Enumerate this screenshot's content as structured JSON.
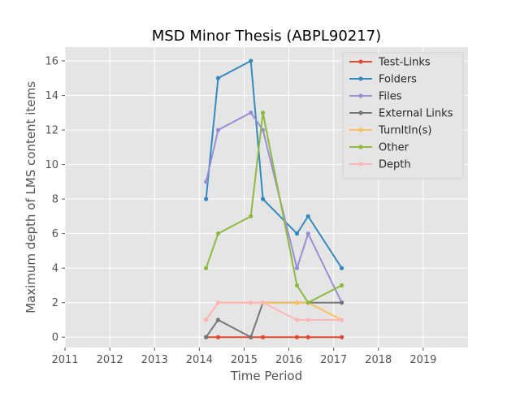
{
  "chart_data": {
    "type": "line",
    "title": "MSD Minor Thesis (ABPL90217)",
    "xlabel": "Time Period",
    "ylabel": "Maximum depth of LMS content items",
    "xlim": [
      2011,
      2020
    ],
    "ylim": [
      -0.6,
      16.8
    ],
    "xticks": [
      2011,
      2012,
      2013,
      2014,
      2015,
      2016,
      2017,
      2018,
      2019
    ],
    "yticks": [
      0,
      2,
      4,
      6,
      8,
      10,
      12,
      14,
      16
    ],
    "grid": true,
    "legend_position": "top-right",
    "x": [
      2014.15,
      2014.42,
      2015.15,
      2015.42,
      2016.18,
      2016.43,
      2017.18
    ],
    "series": [
      {
        "name": "Test-Links",
        "color": "#e24a33",
        "values": [
          0,
          0,
          0,
          0,
          0,
          0,
          0
        ]
      },
      {
        "name": "Folders",
        "color": "#348abd",
        "values": [
          8,
          15,
          16,
          8,
          6,
          7,
          4
        ]
      },
      {
        "name": "Files",
        "color": "#988ed5",
        "values": [
          9,
          12,
          13,
          12,
          4,
          6,
          2
        ]
      },
      {
        "name": "External Links",
        "color": "#777777",
        "values": [
          0,
          1,
          0,
          2,
          2,
          2,
          2
        ]
      },
      {
        "name": "TurnItIn(s)",
        "color": "#fbc15e",
        "values": [
          1,
          2,
          2,
          2,
          2,
          2,
          1
        ]
      },
      {
        "name": "Other",
        "color": "#8eba42",
        "values": [
          4,
          6,
          7,
          13,
          3,
          2,
          3
        ]
      },
      {
        "name": "Depth",
        "color": "#ffb5b8",
        "values": [
          1,
          2,
          2,
          2,
          1,
          1,
          1
        ]
      }
    ]
  }
}
